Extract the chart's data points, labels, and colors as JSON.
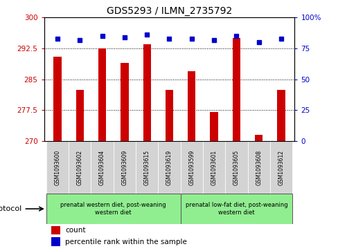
{
  "title": "GDS5293 / ILMN_2735792",
  "samples": [
    "GSM1093600",
    "GSM1093602",
    "GSM1093604",
    "GSM1093609",
    "GSM1093615",
    "GSM1093619",
    "GSM1093599",
    "GSM1093601",
    "GSM1093605",
    "GSM1093608",
    "GSM1093612"
  ],
  "count_values": [
    290.5,
    282.5,
    292.5,
    289.0,
    293.5,
    282.5,
    287.0,
    277.0,
    295.0,
    271.5,
    282.5
  ],
  "percentile_values": [
    83,
    82,
    85,
    84,
    86,
    83,
    83,
    82,
    85,
    80,
    83
  ],
  "ylim_left": [
    270,
    300
  ],
  "ylim_right": [
    0,
    100
  ],
  "yticks_left": [
    270,
    277.5,
    285,
    292.5,
    300
  ],
  "yticks_right": [
    0,
    25,
    50,
    75,
    100
  ],
  "ytick_labels_left": [
    "270",
    "277.5",
    "285",
    "292.5",
    "300"
  ],
  "ytick_labels_right": [
    "0",
    "25",
    "50",
    "75",
    "100%"
  ],
  "bar_color": "#cc0000",
  "dot_color": "#0000cc",
  "group1_label": "prenatal western diet, post-weaning\nwestern diet",
  "group2_label": "prenatal low-fat diet, post-weaning\nwestern diet",
  "group1_count": 6,
  "group2_count": 5,
  "protocol_label": "protocol",
  "legend_count_label": "count",
  "legend_percentile_label": "percentile rank within the sample",
  "label_bg": "#d3d3d3",
  "group_bg": "#90ee90"
}
